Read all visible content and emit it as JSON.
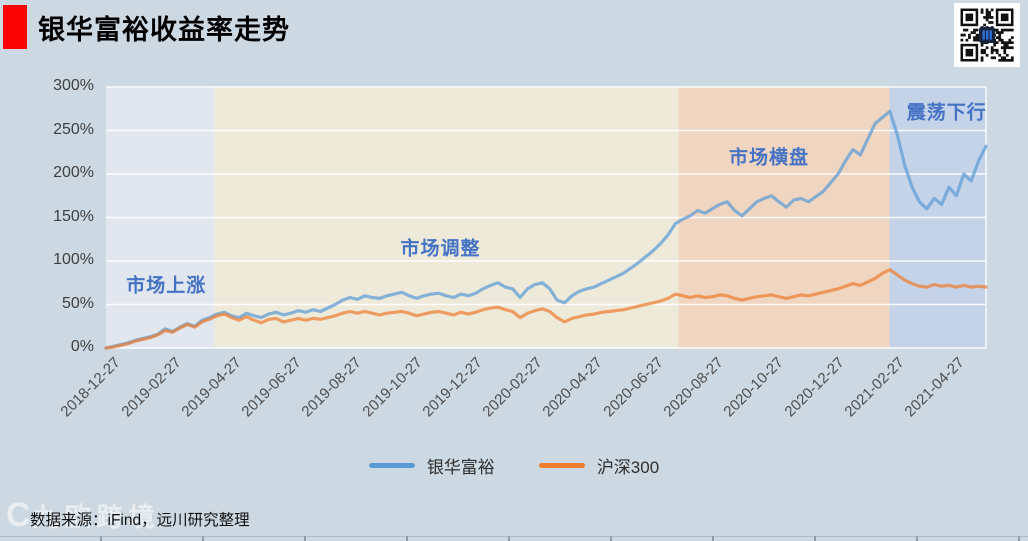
{
  "page": {
    "title": "银华富裕收益率走势",
    "source_note": "数据来源：iFind，远川研究整理",
    "watermark_logo": "C",
    "watermark_text": "九欧跨境",
    "background_color": "#cdd9e2",
    "title_block_color": "#fb0204",
    "qr_code": "qr-code"
  },
  "chart_data": {
    "type": "line",
    "title": "银华富裕收益率走势",
    "xlabel": "",
    "ylabel": "",
    "ylim": [
      0,
      300
    ],
    "grid": "horizontal-white",
    "legend_position": "bottom",
    "y_ticks": [
      "0%",
      "50%",
      "100%",
      "150%",
      "200%",
      "250%",
      "300%"
    ],
    "x_tick_labels": [
      "2018-12-27",
      "2019-02-27",
      "2019-04-27",
      "2019-06-27",
      "2019-08-27",
      "2019-10-27",
      "2019-12-27",
      "2020-02-27",
      "2020-04-27",
      "2020-06-27",
      "2020-08-27",
      "2020-10-27",
      "2020-12-27",
      "2021-02-27",
      "2021-04-27"
    ],
    "x_months_total": 29.2,
    "x_tick_step_months": 2,
    "regions": [
      {
        "label": "市场上涨",
        "start_month": 0.0,
        "end_month": 3.6,
        "color": "#e2e6ee",
        "label_month": 2.0,
        "label_pct": 73
      },
      {
        "label": "市场调整",
        "start_month": 3.6,
        "end_month": 19.0,
        "color": "#eeeada",
        "label_month": 11.1,
        "label_pct": 116
      },
      {
        "label": "市场横盘",
        "start_month": 19.0,
        "end_month": 26.0,
        "color": "#f0d6c1",
        "label_month": 22.0,
        "label_pct": 221
      },
      {
        "label": "震荡下行",
        "start_month": 26.0,
        "end_month": 29.2,
        "color": "#c5d3e9",
        "label_month": 27.9,
        "label_pct": 272
      }
    ],
    "series": [
      {
        "name": "银华富裕",
        "color": "#5B9BD5",
        "values_pct": [
          0,
          2,
          4,
          6,
          9,
          11,
          13,
          16,
          22,
          19,
          24,
          28,
          25,
          32,
          35,
          39,
          41,
          37,
          35,
          40,
          37,
          35,
          39,
          41,
          38,
          40,
          43,
          41,
          44,
          42,
          46,
          50,
          55,
          58,
          56,
          60,
          58,
          57,
          60,
          62,
          64,
          60,
          57,
          60,
          62,
          63,
          60,
          58,
          62,
          60,
          63,
          68,
          72,
          75,
          70,
          68,
          58,
          68,
          73,
          75,
          68,
          55,
          52,
          60,
          65,
          68,
          70,
          74,
          78,
          82,
          86,
          92,
          98,
          105,
          112,
          120,
          130,
          143,
          148,
          152,
          158,
          155,
          160,
          165,
          168,
          158,
          152,
          160,
          168,
          172,
          175,
          168,
          162,
          170,
          172,
          168,
          174,
          180,
          190,
          200,
          215,
          228,
          222,
          240,
          258,
          265,
          272,
          245,
          210,
          185,
          168,
          160,
          172,
          165,
          185,
          175,
          200,
          192,
          215,
          232
        ]
      },
      {
        "name": "沪深300",
        "color": "#ED7D31",
        "values_pct": [
          0,
          1,
          3,
          5,
          8,
          10,
          12,
          15,
          20,
          18,
          23,
          27,
          24,
          30,
          33,
          37,
          39,
          35,
          32,
          36,
          32,
          29,
          33,
          34,
          30,
          32,
          34,
          32,
          34,
          33,
          35,
          37,
          40,
          42,
          40,
          42,
          40,
          38,
          40,
          41,
          42,
          40,
          37,
          39,
          41,
          42,
          40,
          38,
          41,
          39,
          41,
          44,
          46,
          47,
          44,
          42,
          35,
          40,
          43,
          45,
          42,
          35,
          30,
          34,
          36,
          38,
          39,
          41,
          42,
          43,
          44,
          46,
          48,
          50,
          52,
          54,
          57,
          62,
          60,
          58,
          60,
          58,
          59,
          61,
          60,
          57,
          55,
          57,
          59,
          60,
          61,
          59,
          57,
          59,
          61,
          60,
          62,
          64,
          66,
          68,
          71,
          74,
          72,
          76,
          80,
          86,
          90,
          84,
          78,
          74,
          71,
          70,
          73,
          71,
          72,
          70,
          72,
          70,
          71,
          70
        ]
      }
    ]
  }
}
